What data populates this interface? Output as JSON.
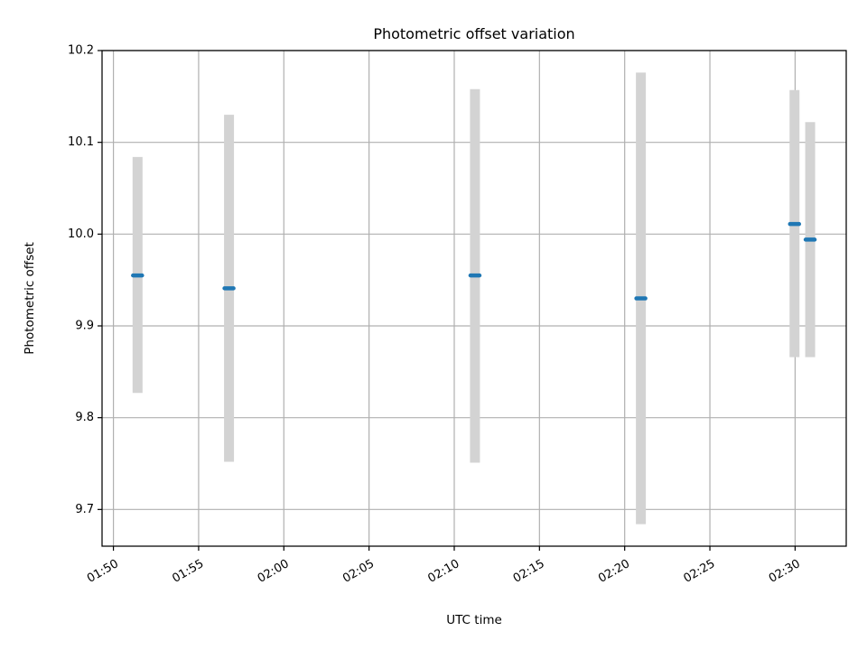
{
  "chart_data": {
    "type": "scatter",
    "title": "Photometric offset variation",
    "xlabel": "UTC time",
    "ylabel": "Photometric offset",
    "xlim": [
      "01:49:20",
      "02:33:00"
    ],
    "ylim": [
      9.66,
      10.2
    ],
    "x_ticks": [
      "01:50",
      "01:55",
      "02:00",
      "02:05",
      "02:10",
      "02:15",
      "02:20",
      "02:25",
      "02:30"
    ],
    "y_ticks": [
      9.7,
      9.8,
      9.9,
      10.0,
      10.1,
      10.2
    ],
    "y_tick_labels": [
      "9.7",
      "9.8",
      "9.9",
      "10.0",
      "10.1",
      "10.2"
    ],
    "grid": true,
    "series": [
      {
        "points": [
          {
            "x": "01:51:25",
            "y": 9.955,
            "ymin": 9.827,
            "ymax": 10.084
          },
          {
            "x": "01:56:47",
            "y": 9.941,
            "ymin": 9.752,
            "ymax": 10.13
          },
          {
            "x": "02:11:13",
            "y": 9.955,
            "ymin": 9.751,
            "ymax": 10.158
          },
          {
            "x": "02:20:57",
            "y": 9.93,
            "ymin": 9.684,
            "ymax": 10.176
          },
          {
            "x": "02:29:58",
            "y": 10.011,
            "ymin": 9.866,
            "ymax": 10.157
          },
          {
            "x": "02:30:53",
            "y": 9.994,
            "ymin": 9.866,
            "ymax": 10.122
          }
        ]
      }
    ],
    "colors": {
      "point": "#1f77b4",
      "errorbar": "#d3d3d3",
      "grid": "#b0b0b0",
      "axes": "#000000"
    }
  }
}
